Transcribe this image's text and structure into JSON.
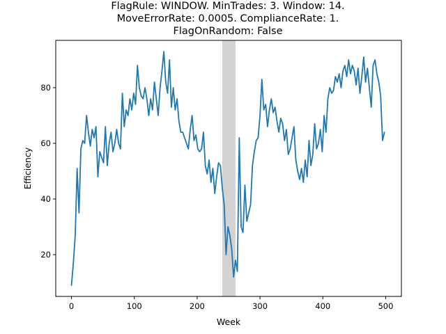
{
  "chart_data": {
    "type": "line",
    "title": [
      "FlagRule: WINDOW. MinTrades: 3. Window: 14.",
      "MoveErrorRate: 0.0005. ComplianceRate: 1.",
      "FlagOnRandom: False"
    ],
    "xlabel": "Week",
    "ylabel": "Efficiency",
    "xlim": [
      -25,
      525
    ],
    "ylim": [
      5,
      97
    ],
    "xticks": [
      0,
      100,
      200,
      300,
      400,
      500
    ],
    "yticks": [
      20,
      40,
      60,
      80
    ],
    "grid": false,
    "line_color": "#1f77b4",
    "shaded_region": {
      "x_start": 240,
      "x_end": 261,
      "color": "#d3d3d3"
    },
    "series": [
      {
        "x": [
          0,
          3,
          6,
          9,
          12,
          15,
          18,
          21,
          24,
          27,
          30,
          33,
          36,
          39,
          42,
          45,
          48,
          51,
          54,
          57,
          60,
          63,
          66,
          69,
          72,
          75,
          78,
          81,
          84,
          87,
          90,
          93,
          96,
          99,
          102,
          105,
          108,
          111,
          114,
          117,
          120,
          123,
          126,
          129,
          132,
          135,
          138,
          141,
          144,
          147,
          150,
          153,
          156,
          159,
          162,
          165,
          168,
          171,
          174,
          177,
          180,
          183,
          186,
          189,
          192,
          195,
          198,
          201,
          204,
          207,
          210,
          213,
          216,
          219,
          222,
          225,
          228,
          231,
          234,
          237,
          240,
          243,
          246,
          249,
          252,
          255,
          258,
          261,
          264,
          267,
          270,
          273,
          276,
          279,
          282,
          285,
          288,
          291,
          294,
          297,
          300,
          303,
          306,
          309,
          312,
          315,
          318,
          321,
          324,
          327,
          330,
          333,
          336,
          339,
          342,
          345,
          348,
          351,
          354,
          357,
          360,
          363,
          366,
          369,
          372,
          375,
          378,
          381,
          384,
          387,
          390,
          393,
          396,
          399,
          402,
          405,
          408,
          411,
          414,
          417,
          420,
          423,
          426,
          429,
          432,
          435,
          438,
          441,
          444,
          447,
          450,
          453,
          456,
          459,
          462,
          465,
          468,
          471,
          474,
          477,
          480,
          483,
          486,
          489,
          492,
          495,
          498
        ],
        "y": [
          9,
          17,
          27,
          51,
          35,
          58,
          61,
          60,
          70,
          64,
          59,
          65,
          62,
          66,
          48,
          57,
          55,
          53,
          66,
          52,
          60,
          64,
          57,
          60,
          65,
          60,
          58,
          78,
          66,
          72,
          70,
          76,
          72,
          78,
          74,
          88,
          80,
          77,
          76,
          80,
          76,
          70,
          76,
          72,
          82,
          76,
          70,
          80,
          86,
          93,
          82,
          78,
          90,
          73,
          80,
          72,
          76,
          68,
          64,
          64,
          62,
          60,
          58,
          65,
          70,
          61,
          63,
          58,
          57,
          58,
          64,
          52,
          49,
          54,
          46,
          51,
          42,
          48,
          53,
          52,
          44,
          38,
          20,
          30,
          27,
          22,
          12,
          18,
          14,
          62,
          30,
          28,
          45,
          32,
          35,
          38,
          52,
          57,
          61,
          62,
          70,
          83,
          72,
          74,
          66,
          72,
          76,
          71,
          73,
          68,
          64,
          69,
          67,
          61,
          65,
          56,
          58,
          62,
          66,
          54,
          50,
          47,
          51,
          46,
          54,
          48,
          61,
          52,
          56,
          67,
          58,
          60,
          65,
          57,
          70,
          64,
          76,
          80,
          78,
          79,
          84,
          82,
          85,
          80,
          86,
          88,
          84,
          90,
          85,
          88,
          86,
          81,
          87,
          78,
          84,
          91,
          82,
          87,
          80,
          73,
          88,
          90,
          85,
          82,
          77,
          61,
          64
        ]
      }
    ]
  }
}
